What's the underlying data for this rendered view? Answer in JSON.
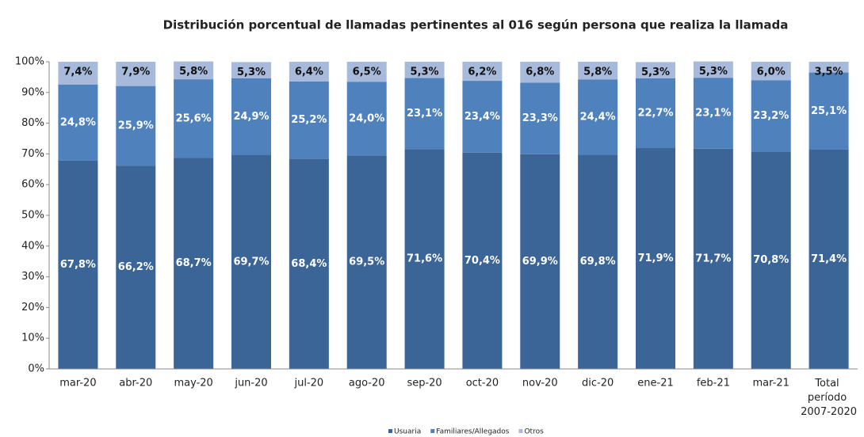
{
  "chart_data": {
    "type": "stacked_bar",
    "title": "Distribución porcentual de llamadas  pertinentes al 016 según persona que  realiza la llamada",
    "categories": [
      "mar-20",
      "abr-20",
      "may-20",
      "jun-20",
      "jul-20",
      "ago-20",
      "sep-20",
      "oct-20",
      "nov-20",
      "dic-20",
      "ene-21",
      "feb-21",
      "mar-21",
      "Total período 2007-2020"
    ],
    "series": [
      {
        "name": "Usuaria",
        "color": "#3b6596",
        "values": [
          67.8,
          66.2,
          68.7,
          69.7,
          68.4,
          69.5,
          71.6,
          70.4,
          69.9,
          69.8,
          71.9,
          71.7,
          70.8,
          71.4
        ],
        "value_labels": [
          "67,8%",
          "66,2%",
          "68,7%",
          "69,7%",
          "68,4%",
          "69,5%",
          "71,6%",
          "70,4%",
          "69,9%",
          "69,8%",
          "71,9%",
          "71,7%",
          "70,8%",
          "71,4%"
        ]
      },
      {
        "name": "Familiares/Allegados",
        "color": "#4f81bd",
        "values": [
          24.8,
          25.9,
          25.6,
          24.9,
          25.2,
          24.0,
          23.1,
          23.4,
          23.3,
          24.4,
          22.7,
          23.1,
          23.2,
          25.1
        ],
        "value_labels": [
          "24,8%",
          "25,9%",
          "25,6%",
          "24,9%",
          "25,2%",
          "24,0%",
          "23,1%",
          "23,4%",
          "23,3%",
          "24,4%",
          "22,7%",
          "23,1%",
          "23,2%",
          "25,1%"
        ]
      },
      {
        "name": "Otros",
        "color": "#a7badb",
        "values": [
          7.4,
          7.9,
          5.8,
          5.3,
          6.4,
          6.5,
          5.3,
          6.2,
          6.8,
          5.8,
          5.3,
          5.3,
          6.0,
          3.5
        ],
        "value_labels": [
          "7,4%",
          "7,9%",
          "5,8%",
          "5,3%",
          "6,4%",
          "6,5%",
          "5,3%",
          "6,2%",
          "6,8%",
          "5,8%",
          "5,3%",
          "5,3%",
          "6,0%",
          "3,5%"
        ]
      }
    ],
    "ylim": [
      0,
      100
    ],
    "yticks": [
      {
        "value": 0,
        "label": "0%"
      },
      {
        "value": 10,
        "label": "10%"
      },
      {
        "value": 20,
        "label": "20%"
      },
      {
        "value": 30,
        "label": "30%"
      },
      {
        "value": 40,
        "label": "40%"
      },
      {
        "value": 50,
        "label": "50%"
      },
      {
        "value": 60,
        "label": "60%"
      },
      {
        "value": 70,
        "label": "70%"
      },
      {
        "value": 80,
        "label": "80%"
      },
      {
        "value": 90,
        "label": "90%"
      },
      {
        "value": 100,
        "label": "100%"
      }
    ]
  }
}
